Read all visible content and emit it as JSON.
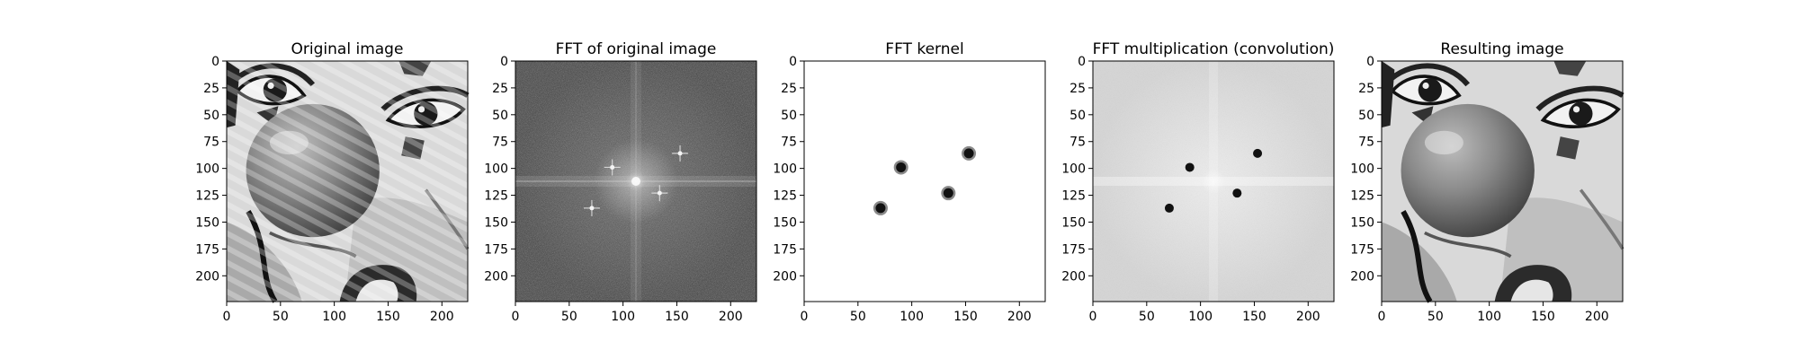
{
  "figure": {
    "panels": [
      {
        "id": "original",
        "title": "Original image",
        "image": "clown-face-photo-with-diagonal-stripe-noise"
      },
      {
        "id": "fft",
        "title": "FFT of original image",
        "image": "log-magnitude-spectrum-dark-grey"
      },
      {
        "id": "kernel",
        "title": "FFT kernel",
        "image": "white-field-with-four-dark-notch-dots"
      },
      {
        "id": "product",
        "title": "FFT multiplication (convolution)",
        "image": "light-grey-spectrum-with-four-dark-notch-dots"
      },
      {
        "id": "result",
        "title": "Resulting image",
        "image": "clown-face-photo-filtered-clean"
      }
    ],
    "axes": {
      "xticks": [
        "0",
        "50",
        "100",
        "150",
        "200"
      ],
      "yticks": [
        "0",
        "25",
        "50",
        "75",
        "100",
        "125",
        "150",
        "175",
        "200"
      ],
      "range": [
        0,
        224
      ]
    },
    "notch_points": [
      {
        "x": 90,
        "y": 99
      },
      {
        "x": 153,
        "y": 86
      },
      {
        "x": 134,
        "y": 123
      },
      {
        "x": 71,
        "y": 137
      }
    ]
  }
}
